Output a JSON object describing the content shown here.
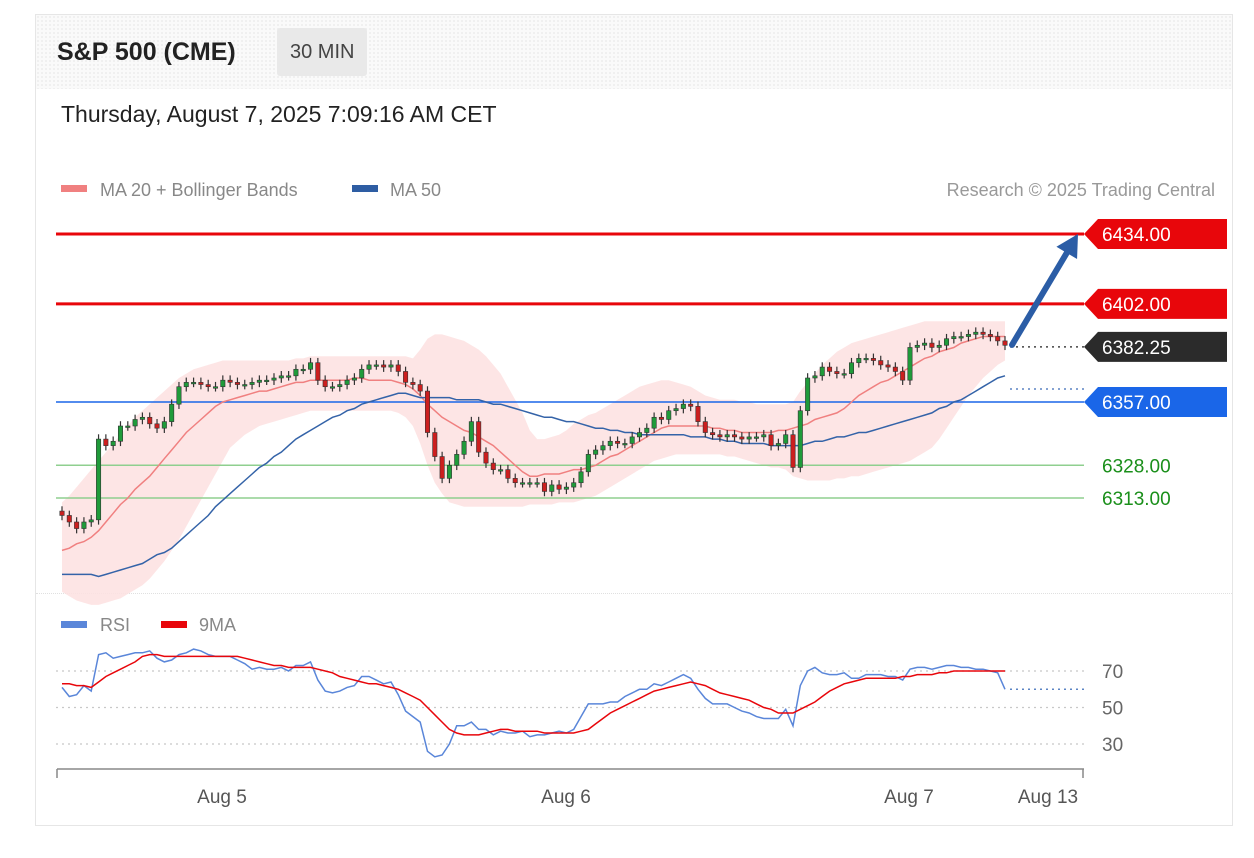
{
  "header": {
    "title": "S&P 500 (CME)",
    "timeframe": "30 MIN"
  },
  "datetime": "Thursday, August 7, 2025 7:09:16 AM CET",
  "legend": {
    "ma20": "MA 20 + Bollinger Bands",
    "ma50": "MA 50",
    "copyright": "Research © 2025 Trading Central",
    "rsi": "RSI",
    "rsi_ma": "9MA"
  },
  "colors": {
    "red": "#e8060b",
    "blue": "#1a66e8",
    "green": "#1a8f1a",
    "dark": "#2b2b2b",
    "ma50": "#3463a8",
    "ma20": "#f08080",
    "band": "#fde0e0",
    "rsi": "#5a86d9",
    "arrow": "#2b5da6"
  },
  "chart_data": [
    {
      "type": "candlestick",
      "ylim": [
        6260,
        6440
      ],
      "x_ticks": [
        "Aug 5",
        "Aug 6",
        "Aug 7",
        "Aug 13"
      ],
      "current_price": "6382.25",
      "levels": [
        {
          "value": 6434.0,
          "label": "6434.00",
          "kind": "resistance",
          "color": "#e8060b"
        },
        {
          "value": 6402.0,
          "label": "6402.00",
          "kind": "resistance",
          "color": "#e8060b"
        },
        {
          "value": 6382.25,
          "label": "6382.25",
          "kind": "last",
          "color": "#2b2b2b"
        },
        {
          "value": 6357.0,
          "label": "6357.00",
          "kind": "pivot",
          "color": "#1a66e8"
        },
        {
          "value": 6328.0,
          "label": "6328.00",
          "kind": "support",
          "color": "#1a8f1a"
        },
        {
          "value": 6313.0,
          "label": "6313.00",
          "kind": "support",
          "color": "#1a8f1a"
        }
      ],
      "forecast_arrow": {
        "from": 6382.25,
        "to": 6434.0
      },
      "close": [
        6305,
        6302,
        6299,
        6302,
        6303,
        6340,
        6337,
        6339,
        6346,
        6346,
        6349,
        6350,
        6347,
        6345,
        6348,
        6356,
        6364,
        6366,
        6366,
        6365,
        6364,
        6364,
        6367,
        6366,
        6365,
        6365,
        6366,
        6367,
        6367,
        6368,
        6369,
        6369,
        6372,
        6372,
        6375,
        6367,
        6364,
        6364,
        6365,
        6367,
        6368,
        6372,
        6374,
        6374,
        6373,
        6374,
        6371,
        6366,
        6365,
        6362,
        6343,
        6332,
        6322,
        6328,
        6333,
        6339,
        6348,
        6334,
        6329,
        6326,
        6326,
        6322,
        6320,
        6320,
        6320,
        6320,
        6316,
        6319,
        6317,
        6318,
        6320,
        6325,
        6333,
        6335,
        6337,
        6339,
        6338,
        6338,
        6341,
        6343,
        6345,
        6350,
        6349,
        6353,
        6354,
        6356,
        6355,
        6348,
        6343,
        6342,
        6341,
        6342,
        6341,
        6340,
        6341,
        6341,
        6342,
        6337,
        6338,
        6342,
        6327,
        6353,
        6368,
        6369,
        6373,
        6371,
        6370,
        6370,
        6375,
        6377,
        6377,
        6376,
        6374,
        6373,
        6371,
        6367,
        6382,
        6383,
        6384,
        6382,
        6383,
        6386,
        6387,
        6387,
        6388,
        6389,
        6388,
        6387,
        6385,
        6383
      ],
      "ma20": [
        6289,
        6290,
        6292,
        6293,
        6295,
        6298,
        6302,
        6306,
        6310,
        6313,
        6317,
        6320,
        6323,
        6327,
        6331,
        6335,
        6339,
        6343,
        6346,
        6349,
        6352,
        6355,
        6357,
        6358,
        6359,
        6360,
        6361,
        6362,
        6362,
        6363,
        6364,
        6365,
        6366,
        6366,
        6367,
        6367,
        6367,
        6367,
        6367,
        6367,
        6368,
        6368,
        6367,
        6367,
        6367,
        6367,
        6366,
        6365,
        6363,
        6360,
        6356,
        6353,
        6350,
        6348,
        6346,
        6344,
        6343,
        6341,
        6339,
        6337,
        6334,
        6331,
        6328,
        6325,
        6323,
        6323,
        6324,
        6324,
        6324,
        6325,
        6326,
        6326,
        6327,
        6328,
        6330,
        6332,
        6333,
        6335,
        6337,
        6339,
        6341,
        6343,
        6345,
        6346,
        6346,
        6346,
        6346,
        6346,
        6346,
        6345,
        6345,
        6344,
        6344,
        6343,
        6343,
        6343,
        6343,
        6343,
        6344,
        6344,
        6345,
        6346,
        6347,
        6349,
        6350,
        6351,
        6352,
        6354,
        6357,
        6360,
        6362,
        6364,
        6366,
        6367,
        6369,
        6371,
        6373,
        6375,
        6377,
        6378,
        6380,
        6381,
        6382,
        6384,
        6385,
        6386,
        6387,
        6387,
        6387,
        6387
      ],
      "ma50": [
        6278,
        6278,
        6278,
        6278,
        6278,
        6277,
        6278,
        6279,
        6280,
        6281,
        6282,
        6283,
        6285,
        6287,
        6288,
        6290,
        6293,
        6296,
        6299,
        6302,
        6305,
        6309,
        6312,
        6315,
        6318,
        6321,
        6324,
        6327,
        6329,
        6332,
        6334,
        6337,
        6340,
        6342,
        6344,
        6346,
        6348,
        6350,
        6351,
        6353,
        6354,
        6356,
        6357,
        6358,
        6359,
        6360,
        6361,
        6361,
        6360,
        6359,
        6359,
        6359,
        6359,
        6359,
        6358,
        6358,
        6358,
        6358,
        6357,
        6356,
        6356,
        6355,
        6354,
        6353,
        6352,
        6351,
        6350,
        6350,
        6349,
        6348,
        6348,
        6347,
        6346,
        6345,
        6345,
        6344,
        6344,
        6343,
        6343,
        6342,
        6342,
        6342,
        6342,
        6342,
        6342,
        6342,
        6341,
        6341,
        6341,
        6340,
        6340,
        6339,
        6339,
        6338,
        6338,
        6338,
        6338,
        6337,
        6337,
        6337,
        6337,
        6337,
        6338,
        6339,
        6339,
        6340,
        6341,
        6341,
        6342,
        6343,
        6343,
        6344,
        6345,
        6346,
        6347,
        6348,
        6349,
        6350,
        6351,
        6352,
        6354,
        6355,
        6357,
        6358,
        6360,
        6362,
        6364,
        6366,
        6368,
        6369
      ],
      "bb_upper": [
        6311,
        6314,
        6318,
        6322,
        6326,
        6330,
        6334,
        6338,
        6342,
        6346,
        6350,
        6353,
        6356,
        6359,
        6362,
        6365,
        6368,
        6370,
        6372,
        6373,
        6374,
        6375,
        6376,
        6376,
        6376,
        6376,
        6376,
        6376,
        6376,
        6376,
        6376,
        6376,
        6377,
        6377,
        6378,
        6378,
        6378,
        6378,
        6378,
        6378,
        6378,
        6378,
        6378,
        6378,
        6378,
        6378,
        6378,
        6378,
        6377,
        6381,
        6386,
        6388,
        6388,
        6387,
        6386,
        6385,
        6383,
        6381,
        6378,
        6374,
        6370,
        6364,
        6358,
        6352,
        6344,
        6340,
        6340,
        6341,
        6342,
        6344,
        6347,
        6349,
        6351,
        6352,
        6354,
        6356,
        6358,
        6360,
        6362,
        6364,
        6365,
        6366,
        6367,
        6367,
        6366,
        6365,
        6364,
        6362,
        6360,
        6359,
        6358,
        6358,
        6358,
        6357,
        6357,
        6356,
        6356,
        6356,
        6356,
        6356,
        6357,
        6362,
        6366,
        6370,
        6374,
        6377,
        6380,
        6382,
        6384,
        6385,
        6386,
        6387,
        6388,
        6389,
        6390,
        6391,
        6392,
        6393,
        6394,
        6394,
        6394,
        6394,
        6394,
        6394,
        6394,
        6394,
        6394,
        6394,
        6394,
        6394
      ],
      "bb_lower": [
        6270,
        6268,
        6266,
        6265,
        6264,
        6264,
        6265,
        6266,
        6267,
        6269,
        6271,
        6273,
        6276,
        6280,
        6284,
        6289,
        6294,
        6300,
        6306,
        6312,
        6318,
        6324,
        6330,
        6336,
        6339,
        6342,
        6344,
        6346,
        6347,
        6348,
        6349,
        6350,
        6351,
        6352,
        6353,
        6353,
        6353,
        6353,
        6353,
        6353,
        6353,
        6353,
        6353,
        6353,
        6353,
        6353,
        6352,
        6350,
        6346,
        6338,
        6328,
        6320,
        6315,
        6311,
        6310,
        6309,
        6309,
        6309,
        6309,
        6309,
        6309,
        6309,
        6309,
        6309,
        6310,
        6310,
        6310,
        6310,
        6311,
        6311,
        6311,
        6312,
        6313,
        6314,
        6316,
        6318,
        6320,
        6322,
        6324,
        6326,
        6328,
        6330,
        6331,
        6332,
        6333,
        6333,
        6333,
        6333,
        6333,
        6333,
        6333,
        6332,
        6332,
        6331,
        6330,
        6329,
        6328,
        6327,
        6327,
        6326,
        6323,
        6322,
        6321,
        6321,
        6321,
        6321,
        6322,
        6322,
        6323,
        6323,
        6324,
        6325,
        6326,
        6327,
        6328,
        6329,
        6330,
        6332,
        6334,
        6336,
        6340,
        6345,
        6350,
        6355,
        6360,
        6364,
        6368,
        6371,
        6374,
        6376
      ]
    },
    {
      "type": "line",
      "ylim": [
        20,
        80
      ],
      "y_ticks": [
        70,
        50,
        30
      ],
      "series": [
        {
          "name": "RSI",
          "values": [
            61,
            56,
            57,
            62,
            59,
            79,
            80,
            77,
            78,
            79,
            80,
            80,
            81,
            77,
            75,
            76,
            79,
            80,
            82,
            81,
            79,
            78,
            78,
            78,
            76,
            74,
            71,
            72,
            71,
            71,
            72,
            70,
            73,
            73,
            75,
            65,
            59,
            58,
            59,
            61,
            62,
            67,
            67,
            65,
            63,
            64,
            57,
            48,
            45,
            42,
            26,
            23,
            24,
            30,
            40,
            40,
            42,
            38,
            38,
            35,
            37,
            36,
            36,
            37,
            34,
            35,
            35,
            36,
            37,
            36,
            38,
            45,
            52,
            52,
            52,
            53,
            53,
            56,
            58,
            60,
            60,
            63,
            62,
            64,
            66,
            68,
            66,
            60,
            55,
            52,
            52,
            52,
            50,
            48,
            47,
            45,
            44,
            44,
            44,
            49,
            40,
            62,
            70,
            72,
            69,
            68,
            68,
            69,
            66,
            66,
            68,
            68,
            68,
            67,
            67,
            65,
            71,
            72,
            72,
            71,
            72,
            73,
            73,
            72,
            72,
            71,
            71,
            70,
            69,
            60
          ]
        },
        {
          "name": "9MA",
          "values": [
            63,
            63,
            62,
            62,
            61,
            64,
            67,
            69,
            71,
            73,
            75,
            78,
            79,
            79,
            78,
            78,
            78,
            78,
            78,
            78,
            78,
            78,
            78,
            78,
            78,
            77,
            76,
            75,
            74,
            73,
            73,
            72,
            72,
            72,
            72,
            71,
            70,
            69,
            67,
            66,
            65,
            64,
            63,
            63,
            62,
            61,
            60,
            58,
            56,
            54,
            50,
            46,
            42,
            38,
            36,
            35,
            35,
            35,
            36,
            37,
            38,
            38,
            37,
            37,
            37,
            37,
            36,
            36,
            36,
            36,
            36,
            37,
            38,
            41,
            44,
            47,
            49,
            51,
            53,
            55,
            57,
            59,
            60,
            61,
            62,
            63,
            64,
            63,
            62,
            60,
            58,
            57,
            56,
            55,
            54,
            52,
            50,
            49,
            47,
            47,
            47,
            49,
            51,
            53,
            56,
            59,
            61,
            63,
            64,
            65,
            66,
            66,
            66,
            66,
            66,
            67,
            67,
            68,
            68,
            68,
            69,
            69,
            70,
            70,
            70,
            70,
            70,
            70,
            70,
            70
          ]
        }
      ]
    }
  ]
}
